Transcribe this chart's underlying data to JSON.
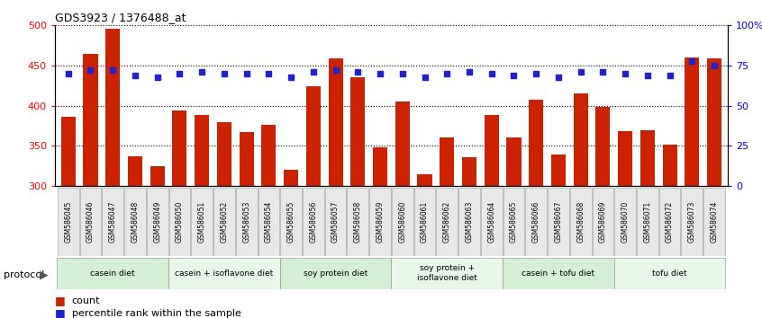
{
  "title": "GDS3923 / 1376488_at",
  "samples": [
    "GSM586045",
    "GSM586046",
    "GSM586047",
    "GSM586048",
    "GSM586049",
    "GSM586050",
    "GSM586051",
    "GSM586052",
    "GSM586053",
    "GSM586054",
    "GSM586055",
    "GSM586056",
    "GSM586057",
    "GSM586058",
    "GSM586059",
    "GSM586060",
    "GSM586061",
    "GSM586062",
    "GSM586063",
    "GSM586064",
    "GSM586065",
    "GSM586066",
    "GSM586067",
    "GSM586068",
    "GSM586069",
    "GSM586070",
    "GSM586071",
    "GSM586072",
    "GSM586073",
    "GSM586074"
  ],
  "counts": [
    386,
    464,
    496,
    337,
    325,
    394,
    389,
    380,
    367,
    376,
    320,
    424,
    459,
    435,
    348,
    405,
    315,
    360,
    336,
    388,
    360,
    407,
    339,
    415,
    398,
    368,
    370,
    352,
    460,
    459
  ],
  "percentile": [
    70,
    72,
    72,
    69,
    68,
    70,
    71,
    70,
    70,
    70,
    68,
    71,
    72,
    71,
    70,
    70,
    68,
    70,
    71,
    70,
    69,
    70,
    68,
    71,
    71,
    70,
    69,
    69,
    78,
    75
  ],
  "groups": [
    {
      "label": "casein diet",
      "start": 0,
      "end": 5,
      "color": "#d4f0d4"
    },
    {
      "label": "casein + isoflavone diet",
      "start": 5,
      "end": 10,
      "color": "#e8f8e8"
    },
    {
      "label": "soy protein diet",
      "start": 10,
      "end": 15,
      "color": "#d4f0d4"
    },
    {
      "label": "soy protein +\nisoflavone diet",
      "start": 15,
      "end": 20,
      "color": "#e8f8e8"
    },
    {
      "label": "casein + tofu diet",
      "start": 20,
      "end": 25,
      "color": "#d4f0d4"
    },
    {
      "label": "tofu diet",
      "start": 25,
      "end": 30,
      "color": "#e8f8e8"
    }
  ],
  "bar_color": "#cc2200",
  "dot_color": "#2222cc",
  "ylim_left": [
    300,
    500
  ],
  "ylim_right": [
    0,
    100
  ],
  "yticks_left": [
    300,
    350,
    400,
    450,
    500
  ],
  "yticks_right": [
    0,
    25,
    50,
    75,
    100
  ],
  "ytick_labels_right": [
    "0",
    "25",
    "50",
    "75",
    "100%"
  ],
  "legend_count_label": "count",
  "legend_pct_label": "percentile rank within the sample",
  "protocol_label": "protocol"
}
